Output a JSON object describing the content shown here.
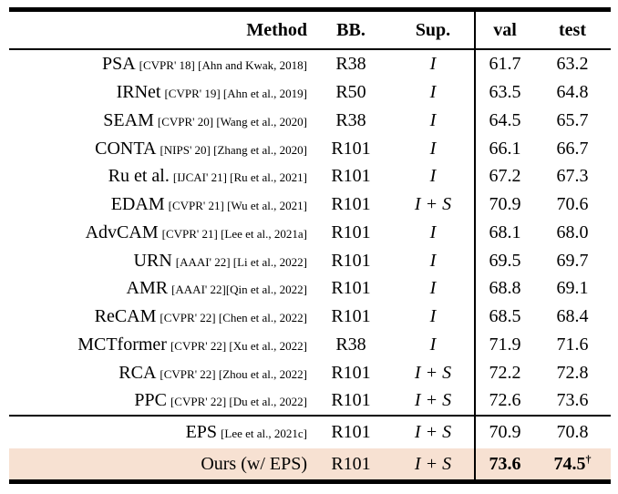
{
  "table": {
    "headers": {
      "method": "Method",
      "bb": "BB.",
      "sup": "Sup.",
      "val": "val",
      "test": "test"
    },
    "rows": [
      {
        "name": "PSA",
        "cite": "[CVPR' 18] [Ahn and Kwak, 2018]",
        "bb": "R38",
        "sup": "I",
        "val": "61.7",
        "test": "63.2",
        "test_sup": ""
      },
      {
        "name": "IRNet",
        "cite": "[CVPR' 19] [Ahn et al., 2019]",
        "bb": "R50",
        "sup": "I",
        "val": "63.5",
        "test": "64.8",
        "test_sup": ""
      },
      {
        "name": "SEAM",
        "cite": "[CVPR' 20] [Wang et al., 2020]",
        "bb": "R38",
        "sup": "I",
        "val": "64.5",
        "test": "65.7",
        "test_sup": ""
      },
      {
        "name": "CONTA",
        "cite": "[NIPS' 20] [Zhang et al., 2020]",
        "bb": "R101",
        "sup": "I",
        "val": "66.1",
        "test": "66.7",
        "test_sup": ""
      },
      {
        "name": "Ru et al.",
        "cite": "[IJCAI' 21] [Ru et al., 2021]",
        "bb": "R101",
        "sup": "I",
        "val": "67.2",
        "test": "67.3",
        "test_sup": ""
      },
      {
        "name": "EDAM",
        "cite": "[CVPR' 21] [Wu et al., 2021]",
        "bb": "R101",
        "sup": "I + S",
        "val": "70.9",
        "test": "70.6",
        "test_sup": ""
      },
      {
        "name": "AdvCAM",
        "cite": "[CVPR' 21] [Lee et al., 2021a]",
        "bb": "R101",
        "sup": "I",
        "val": "68.1",
        "test": "68.0",
        "test_sup": ""
      },
      {
        "name": "URN",
        "cite": "[AAAI' 22] [Li et al., 2022]",
        "bb": "R101",
        "sup": "I",
        "val": "69.5",
        "test": "69.7",
        "test_sup": ""
      },
      {
        "name": "AMR",
        "cite": "[AAAI' 22][Qin et al., 2022]",
        "bb": "R101",
        "sup": "I",
        "val": "68.8",
        "test": "69.1",
        "test_sup": ""
      },
      {
        "name": "ReCAM",
        "cite": "[CVPR' 22] [Chen et al., 2022]",
        "bb": "R101",
        "sup": "I",
        "val": "68.5",
        "test": "68.4",
        "test_sup": ""
      },
      {
        "name": "MCTformer",
        "cite": "[CVPR' 22] [Xu et al., 2022]",
        "bb": "R38",
        "sup": "I",
        "val": "71.9",
        "test": "71.6",
        "test_sup": ""
      },
      {
        "name": "RCA",
        "cite": "[CVPR' 22] [Zhou et al., 2022]",
        "bb": "R101",
        "sup": "I + S",
        "val": "72.2",
        "test": "72.8",
        "test_sup": ""
      },
      {
        "name": "PPC",
        "cite": "[CVPR' 22] [Du et al., 2022]",
        "bb": "R101",
        "sup": "I + S",
        "val": "72.6",
        "test": "73.6",
        "test_sup": ""
      },
      {
        "name": "EPS",
        "cite": "[Lee et al., 2021c]",
        "bb": "R101",
        "sup": "I + S",
        "val": "70.9",
        "test": "70.8",
        "test_sup": ""
      },
      {
        "name": "Ours (w/ EPS)",
        "cite": "",
        "bb": "R101",
        "sup": "I + S",
        "val": "73.6",
        "test": "74.5",
        "test_sup": "†"
      }
    ],
    "colors": {
      "highlight": "#f7e1d2",
      "rule": "#000000",
      "text": "#000000"
    }
  }
}
